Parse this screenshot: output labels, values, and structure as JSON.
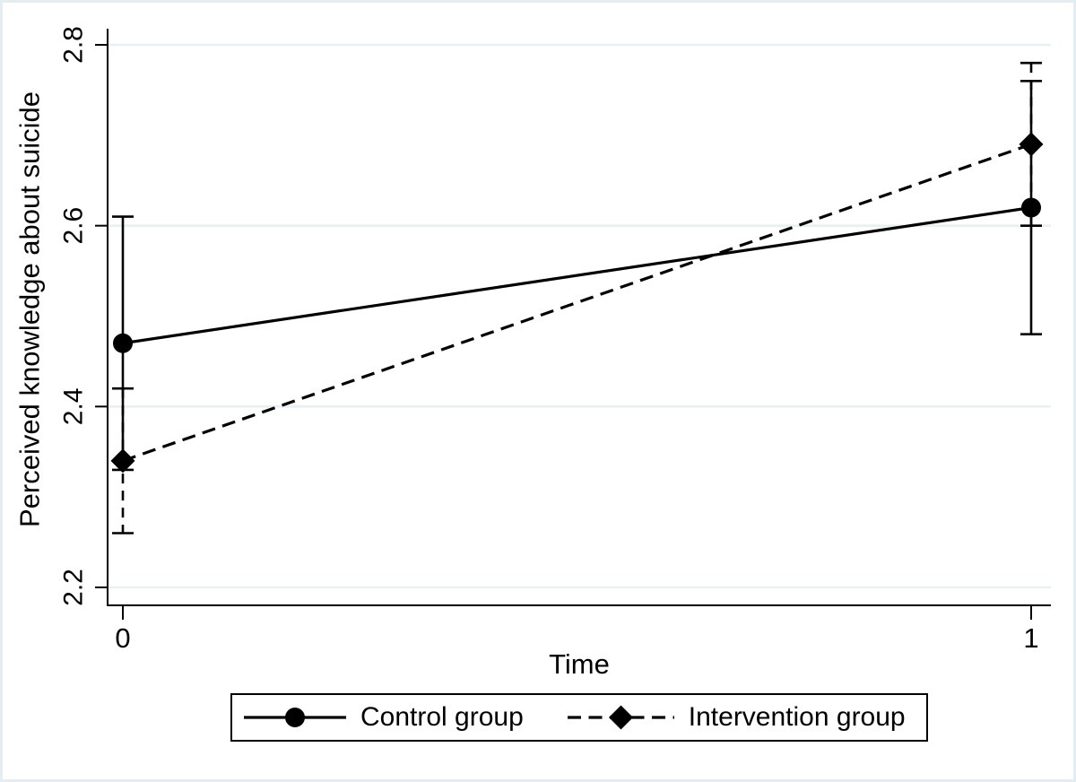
{
  "figure": {
    "background": "#ffffff",
    "border_color": "#e3edf2"
  },
  "chart_data": {
    "type": "line",
    "title": "",
    "xlabel": "Time",
    "ylabel": "Perceived knowledge about suicide",
    "x": [
      0,
      1
    ],
    "x_tick_labels": [
      "0",
      "1"
    ],
    "y_ticks": [
      2.2,
      2.4,
      2.6,
      2.8
    ],
    "ylim": [
      2.2,
      2.8
    ],
    "xlim": [
      0,
      1
    ],
    "grid": "horizontal",
    "gridline_color": "#e8f0f3",
    "axis_color": "#000000",
    "legend_position": "bottom",
    "series": [
      {
        "name": "Control group",
        "marker": "circle",
        "line_style": "solid",
        "color": "#000000",
        "values": [
          2.47,
          2.62
        ],
        "ci_low": [
          2.33,
          2.48
        ],
        "ci_high": [
          2.61,
          2.76
        ]
      },
      {
        "name": "Intervention group",
        "marker": "diamond",
        "line_style": "dashed",
        "color": "#000000",
        "values": [
          2.34,
          2.69
        ],
        "ci_low": [
          2.26,
          2.6
        ],
        "ci_high": [
          2.42,
          2.78
        ]
      }
    ]
  }
}
